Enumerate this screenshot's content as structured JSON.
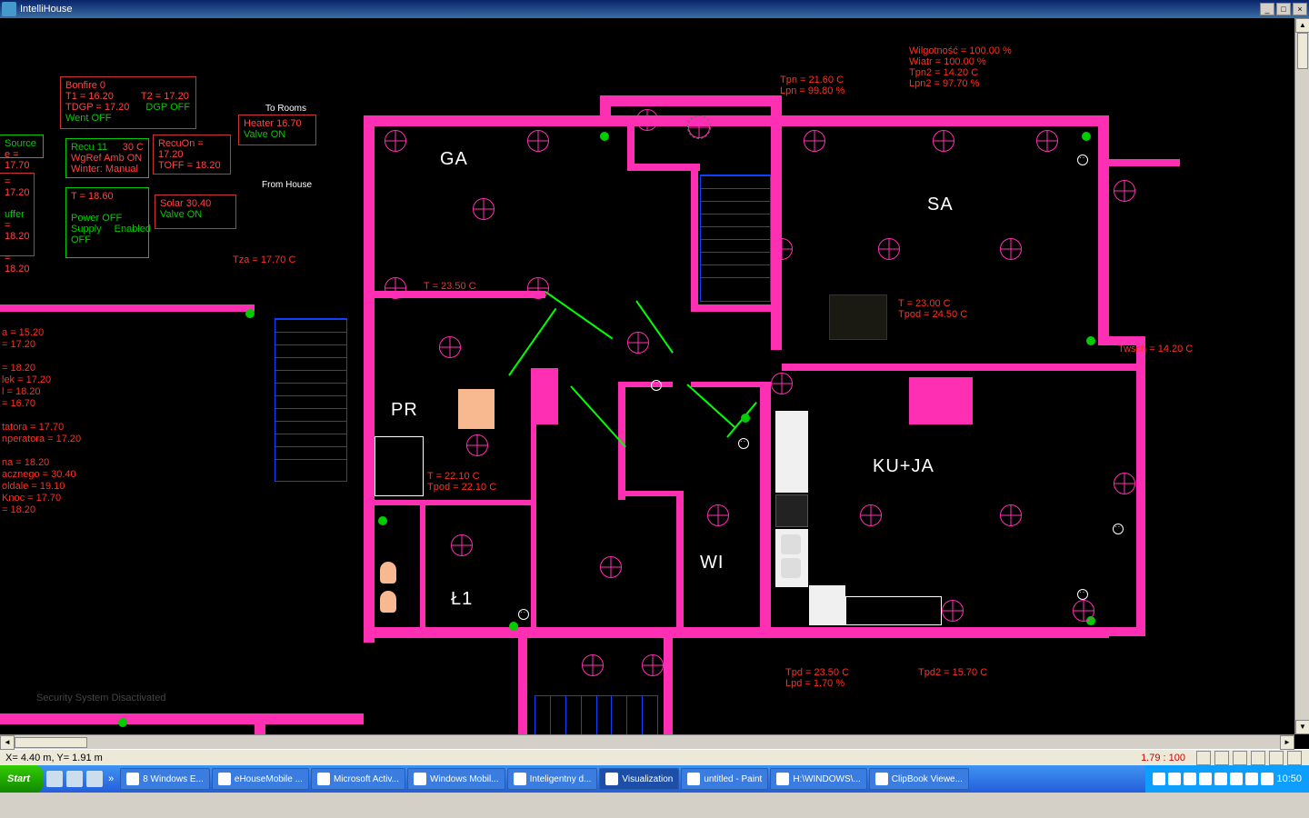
{
  "app": {
    "title": "IntelliHouse"
  },
  "status": {
    "coords": "X= 4.40 m, Y= 1.91 m",
    "scale": "1.79 : 100"
  },
  "taskbar": {
    "start": "Start",
    "buttons": [
      {
        "label": "8 Windows E...",
        "active": false
      },
      {
        "label": "eHouseMobile ...",
        "active": false
      },
      {
        "label": "Microsoft Activ...",
        "active": false
      },
      {
        "label": "Windows Mobil...",
        "active": false
      },
      {
        "label": "Inteligentny d...",
        "active": false
      },
      {
        "label": "Visualization",
        "active": true
      },
      {
        "label": "untitled - Paint",
        "active": false
      },
      {
        "label": "H:\\WINDOWS\\...",
        "active": false
      },
      {
        "label": "ClipBook Viewe...",
        "active": false
      }
    ],
    "clock": "10:50"
  },
  "readouts": {
    "top_right": [
      "Wilgotność = 100.00 %",
      "Wiatr = 100.00 %",
      "Tpn2 = 14.20 C",
      "Lpn2 = 97.70 %"
    ],
    "top_mid": [
      "Tpn = 21.60 C",
      "Lpn = 99.80 %"
    ],
    "tza": "Tza = 17.70 C",
    "t_ga": "T = 23.50 C",
    "t_sa": [
      "T = 23.00 C",
      "Tpod = 24.50 C"
    ],
    "twsch": "Twsch = 14.20 C",
    "t_pr": [
      "T = 22.10 C",
      "Tpod = 22.10 C"
    ],
    "bottom_mid": [
      "Tpd = 23.50 C",
      "Lpd = 1.70 %"
    ],
    "tpd2": "Tpd2 = 15.70 C",
    "security": "Security System Disactivated",
    "left_block": [
      "a = 15.20",
      "= 17.20",
      "",
      "= 18.20",
      "lek = 17.20",
      "l = 18.20",
      "= 16.70",
      "",
      "tatora = 17.70",
      "nperatora = 17.20",
      "",
      "na = 18.20",
      "acznego = 30.40",
      "oldale = 19.10",
      "Knoc = 17.70",
      "= 18.20"
    ]
  },
  "panels": {
    "bonfire": {
      "title": "Bonfire 0",
      "l1": "T1 = 16.20",
      "l2": "T2 = 17.20",
      "l3": "TDGP = 17.20",
      "l4": "DGP OFF",
      "l5": "Went OFF"
    },
    "recu": {
      "title": "Recu    11",
      "temp": "30 C",
      "l1": "RecuOn = 17.20",
      "l2": "TOFF = 18.20",
      "l3": "WgRef Amb ON",
      "l4": "Winter: Manual",
      "l5": "T = 18.60",
      "l6": "Power OFF",
      "l7": "Supply OFF",
      "l8": "Enabled"
    },
    "heater": {
      "title": "Heater 16.70",
      "sub": "Valve ON",
      "above": "To Rooms",
      "below": "From House"
    },
    "solar": {
      "title": "Solar    30.40",
      "sub": "Valve ON"
    },
    "source": {
      "title": "Source",
      "t": "e = 17.70"
    },
    "buffer": {
      "title": "uffer",
      "a": "= 17.20",
      "b": "= 18.20",
      "c": "= 18.20"
    }
  },
  "rooms": {
    "GA": "GA",
    "SA": "SA",
    "PR": "PR",
    "WI": "WI",
    "L1": "Ł1",
    "KUJA": "KU+JA"
  },
  "colors": {
    "wall": "#ff2fb3",
    "text": "#ff3020",
    "green": "#00cc00",
    "blue": "#1040ff",
    "bg": "#000000"
  }
}
